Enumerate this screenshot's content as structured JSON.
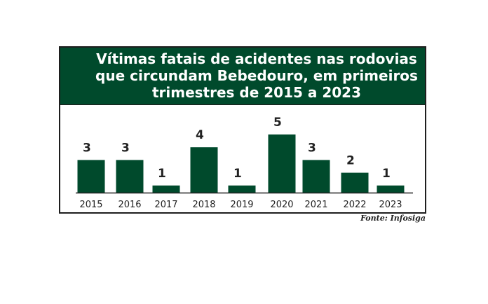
{
  "chart_data": {
    "type": "bar",
    "title": "Vítimas fatais de acidentes nas rodovias que circundam Bebedouro, em primeiros trimestres de 2015 a 2023",
    "title_lines": [
      "Vítimas fatais de acidentes nas rodovias",
      "que circundam Bebedouro, em primeiros",
      "trimestres de 2015 a 2023"
    ],
    "categories": [
      "2015",
      "2016",
      "2017",
      "2018",
      "2019",
      "2020",
      "2021",
      "2022",
      "2023"
    ],
    "values": [
      3,
      3,
      1,
      4,
      1,
      5,
      3,
      2,
      1
    ],
    "xlabel": "",
    "ylabel": "",
    "ylim": [
      0,
      5
    ],
    "grid": false,
    "data_labels": true,
    "source": "Fonte: Infosiga",
    "colors": {
      "bar": "#004a2c",
      "header": "#004a2c",
      "title_text": "#ffffff"
    }
  }
}
